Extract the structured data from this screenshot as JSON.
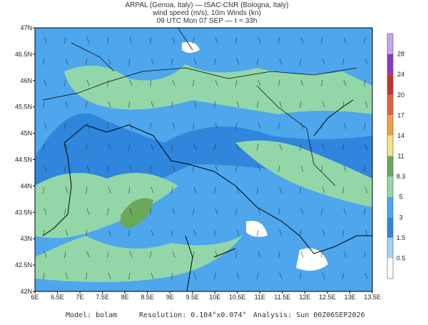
{
  "header": {
    "lines": [
      "ARPAL (Genoa, Italy)  —  ISAC-CNR (Bologna, Italy)",
      "wind speed (m/s), 10m Winds (kn)",
      "09 UTC Mon 07 SEP  —  τ = 33h"
    ]
  },
  "map": {
    "x_ticks": [
      "6E",
      "6.5E",
      "7E",
      "7.5E",
      "8E",
      "8.5E",
      "9E",
      "9.5E",
      "10E",
      "10.5E",
      "11E",
      "11.5E",
      "12E",
      "12.5E",
      "13E",
      "13.5E"
    ],
    "y_ticks": [
      "47N",
      "46.5N",
      "46N",
      "45.5N",
      "45N",
      "44.5N",
      "44N",
      "43.5N",
      "43N",
      "42.5N",
      "42N"
    ]
  },
  "colorbar": {
    "labels": [
      "28",
      "24",
      "20",
      "17",
      "14",
      "11",
      "8.3",
      "5",
      "3",
      "1.5",
      "0.5"
    ]
  },
  "footer": {
    "model": "Model: bolam",
    "resolution": "Resolution: 0.104°x0.074°",
    "analysis": "Analysis: Sun 00Z06SEP2026"
  }
}
